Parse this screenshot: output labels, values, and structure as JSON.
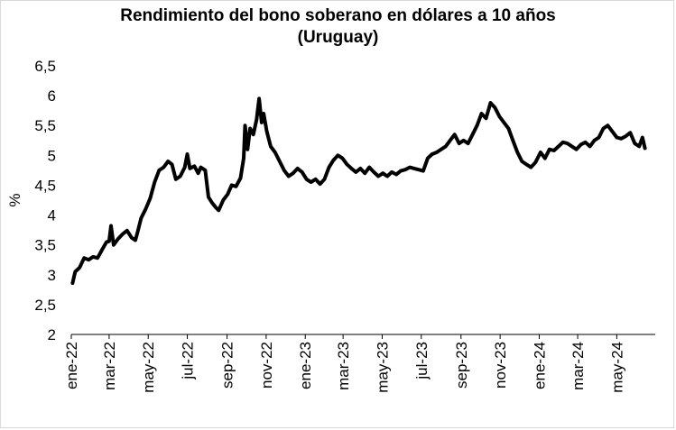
{
  "chart_data": {
    "type": "line",
    "title_line1": "Rendimiento del bono soberano en dólares a 10 años",
    "title_line2": "(Uruguay)",
    "ylabel": "%",
    "xlabel": "",
    "ylim": [
      2,
      6.5
    ],
    "yticks": [
      "2",
      "2,5",
      "3",
      "3,5",
      "4",
      "4,5",
      "5",
      "5,5",
      "6",
      "6,5"
    ],
    "xticks": [
      "ene-22",
      "mar-22",
      "may-22",
      "jul-22",
      "sep-22",
      "nov-22",
      "ene-23",
      "mar-23",
      "may-23",
      "jul-23",
      "sep-23",
      "nov-23",
      "ene-24",
      "mar-24",
      "may-24"
    ],
    "grid": false,
    "legend": "none",
    "series": [
      {
        "color": "#000000",
        "values": [
          [
            "2022-01-03",
            2.86
          ],
          [
            "2022-01-07",
            3.05
          ],
          [
            "2022-01-14",
            3.12
          ],
          [
            "2022-01-21",
            3.28
          ],
          [
            "2022-01-28",
            3.25
          ],
          [
            "2022-02-04",
            3.3
          ],
          [
            "2022-02-11",
            3.28
          ],
          [
            "2022-02-18",
            3.42
          ],
          [
            "2022-02-25",
            3.55
          ],
          [
            "2022-03-01",
            3.56
          ],
          [
            "2022-03-04",
            3.82
          ],
          [
            "2022-03-08",
            3.5
          ],
          [
            "2022-03-15",
            3.6
          ],
          [
            "2022-03-22",
            3.68
          ],
          [
            "2022-03-29",
            3.74
          ],
          [
            "2022-04-05",
            3.62
          ],
          [
            "2022-04-11",
            3.58
          ],
          [
            "2022-04-14",
            3.7
          ],
          [
            "2022-04-20",
            3.95
          ],
          [
            "2022-04-27",
            4.1
          ],
          [
            "2022-05-04",
            4.28
          ],
          [
            "2022-05-11",
            4.55
          ],
          [
            "2022-05-18",
            4.75
          ],
          [
            "2022-05-25",
            4.8
          ],
          [
            "2022-06-01",
            4.9
          ],
          [
            "2022-06-07",
            4.85
          ],
          [
            "2022-06-13",
            4.6
          ],
          [
            "2022-06-20",
            4.65
          ],
          [
            "2022-06-27",
            4.8
          ],
          [
            "2022-07-01",
            5.02
          ],
          [
            "2022-07-05",
            4.78
          ],
          [
            "2022-07-12",
            4.82
          ],
          [
            "2022-07-18",
            4.7
          ],
          [
            "2022-07-22",
            4.8
          ],
          [
            "2022-07-29",
            4.75
          ],
          [
            "2022-08-03",
            4.3
          ],
          [
            "2022-08-09",
            4.2
          ],
          [
            "2022-08-15",
            4.12
          ],
          [
            "2022-08-19",
            4.08
          ],
          [
            "2022-08-26",
            4.25
          ],
          [
            "2022-09-02",
            4.35
          ],
          [
            "2022-09-08",
            4.5
          ],
          [
            "2022-09-15",
            4.48
          ],
          [
            "2022-09-22",
            4.62
          ],
          [
            "2022-09-27",
            4.95
          ],
          [
            "2022-09-29",
            5.5
          ],
          [
            "2022-10-03",
            5.1
          ],
          [
            "2022-10-07",
            5.45
          ],
          [
            "2022-10-12",
            5.35
          ],
          [
            "2022-10-17",
            5.6
          ],
          [
            "2022-10-21",
            5.95
          ],
          [
            "2022-10-25",
            5.55
          ],
          [
            "2022-10-28",
            5.7
          ],
          [
            "2022-11-02",
            5.4
          ],
          [
            "2022-11-08",
            5.15
          ],
          [
            "2022-11-15",
            5.05
          ],
          [
            "2022-11-22",
            4.9
          ],
          [
            "2022-11-29",
            4.75
          ],
          [
            "2022-12-06",
            4.65
          ],
          [
            "2022-12-13",
            4.7
          ],
          [
            "2022-12-20",
            4.78
          ],
          [
            "2022-12-27",
            4.72
          ],
          [
            "2023-01-03",
            4.6
          ],
          [
            "2023-01-10",
            4.55
          ],
          [
            "2023-01-17",
            4.6
          ],
          [
            "2023-01-24",
            4.52
          ],
          [
            "2023-01-31",
            4.6
          ],
          [
            "2023-02-07",
            4.8
          ],
          [
            "2023-02-14",
            4.92
          ],
          [
            "2023-02-21",
            5.0
          ],
          [
            "2023-02-28",
            4.95
          ],
          [
            "2023-03-07",
            4.85
          ],
          [
            "2023-03-14",
            4.78
          ],
          [
            "2023-03-21",
            4.72
          ],
          [
            "2023-03-28",
            4.78
          ],
          [
            "2023-04-04",
            4.7
          ],
          [
            "2023-04-11",
            4.8
          ],
          [
            "2023-04-18",
            4.72
          ],
          [
            "2023-04-25",
            4.65
          ],
          [
            "2023-05-02",
            4.7
          ],
          [
            "2023-05-09",
            4.65
          ],
          [
            "2023-05-16",
            4.72
          ],
          [
            "2023-05-23",
            4.68
          ],
          [
            "2023-05-30",
            4.74
          ],
          [
            "2023-06-06",
            4.76
          ],
          [
            "2023-06-13",
            4.8
          ],
          [
            "2023-06-20",
            4.78
          ],
          [
            "2023-06-27",
            4.76
          ],
          [
            "2023-07-04",
            4.74
          ],
          [
            "2023-07-11",
            4.95
          ],
          [
            "2023-07-18",
            5.02
          ],
          [
            "2023-07-25",
            5.05
          ],
          [
            "2023-08-01",
            5.1
          ],
          [
            "2023-08-08",
            5.15
          ],
          [
            "2023-08-15",
            5.25
          ],
          [
            "2023-08-22",
            5.35
          ],
          [
            "2023-08-29",
            5.2
          ],
          [
            "2023-09-05",
            5.25
          ],
          [
            "2023-09-12",
            5.2
          ],
          [
            "2023-09-19",
            5.35
          ],
          [
            "2023-09-26",
            5.5
          ],
          [
            "2023-10-03",
            5.7
          ],
          [
            "2023-10-10",
            5.62
          ],
          [
            "2023-10-17",
            5.88
          ],
          [
            "2023-10-24",
            5.8
          ],
          [
            "2023-10-31",
            5.65
          ],
          [
            "2023-11-07",
            5.55
          ],
          [
            "2023-11-14",
            5.45
          ],
          [
            "2023-11-21",
            5.25
          ],
          [
            "2023-11-28",
            5.05
          ],
          [
            "2023-12-05",
            4.9
          ],
          [
            "2023-12-12",
            4.85
          ],
          [
            "2023-12-19",
            4.8
          ],
          [
            "2023-12-26",
            4.88
          ],
          [
            "2024-01-03",
            5.05
          ],
          [
            "2024-01-10",
            4.95
          ],
          [
            "2024-01-17",
            5.1
          ],
          [
            "2024-01-24",
            5.08
          ],
          [
            "2024-01-31",
            5.15
          ],
          [
            "2024-02-07",
            5.22
          ],
          [
            "2024-02-14",
            5.2
          ],
          [
            "2024-02-21",
            5.15
          ],
          [
            "2024-02-28",
            5.1
          ],
          [
            "2024-03-06",
            5.18
          ],
          [
            "2024-03-13",
            5.22
          ],
          [
            "2024-03-20",
            5.15
          ],
          [
            "2024-03-27",
            5.25
          ],
          [
            "2024-04-03",
            5.3
          ],
          [
            "2024-04-10",
            5.45
          ],
          [
            "2024-04-17",
            5.5
          ],
          [
            "2024-04-24",
            5.4
          ],
          [
            "2024-05-01",
            5.3
          ],
          [
            "2024-05-08",
            5.28
          ],
          [
            "2024-05-15",
            5.32
          ],
          [
            "2024-05-22",
            5.38
          ],
          [
            "2024-05-29",
            5.2
          ],
          [
            "2024-06-05",
            5.15
          ],
          [
            "2024-06-10",
            5.3
          ],
          [
            "2024-06-14",
            5.12
          ]
        ]
      }
    ]
  }
}
